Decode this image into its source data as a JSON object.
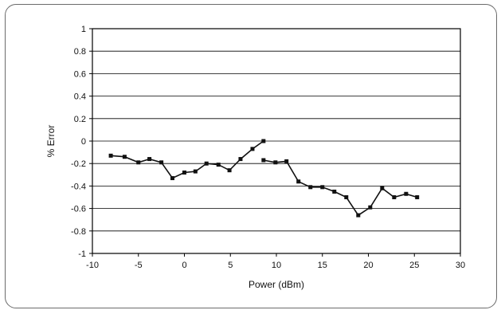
{
  "chart_data": {
    "type": "line",
    "title": "",
    "xlabel": "Power (dBm)",
    "ylabel": "% Error",
    "xlim": [
      -10,
      30
    ],
    "ylim": [
      -1,
      1
    ],
    "x_ticks": [
      -10,
      -5,
      0,
      5,
      10,
      15,
      20,
      25,
      30
    ],
    "y_ticks": [
      1,
      0.8,
      0.6,
      0.4,
      0.2,
      0,
      -0.2,
      -0.4,
      -0.6,
      -0.8,
      -1
    ],
    "x_tick_labels": [
      "-10",
      "-5",
      "0",
      "5",
      "10",
      "15",
      "20",
      "25",
      "30"
    ],
    "y_tick_labels": [
      "1",
      "0.8",
      "0.6",
      "0.4",
      "0.2",
      "0",
      "-0.2",
      "-0.4",
      "-0.6",
      "-0.8",
      "-1"
    ],
    "grid": "horizontal",
    "legend": "none",
    "series": [
      {
        "x": [
          -8,
          -6.5,
          -5,
          -3.8,
          -2.5,
          -1.3,
          0,
          1.2,
          2.4,
          3.7,
          4.9,
          6.1,
          7.4,
          8.6
        ],
        "y": [
          -0.13,
          -0.14,
          -0.19,
          -0.16,
          -0.19,
          -0.33,
          -0.28,
          -0.27,
          -0.2,
          -0.21,
          -0.26,
          -0.16,
          -0.07,
          0
        ]
      },
      {
        "x": [
          8.6,
          9.9,
          11.1,
          12.4,
          13.7,
          15,
          16.3,
          17.6,
          18.9,
          20.2,
          21.5,
          22.8,
          24.1,
          25.3
        ],
        "y": [
          -0.17,
          -0.19,
          -0.18,
          -0.36,
          -0.41,
          -0.41,
          -0.45,
          -0.5,
          -0.66,
          -0.59,
          -0.42,
          -0.5,
          -0.47,
          -0.5
        ]
      }
    ],
    "colors": {
      "line": "#111111",
      "grid": "#000000",
      "frame": "#6b6b6b"
    }
  }
}
